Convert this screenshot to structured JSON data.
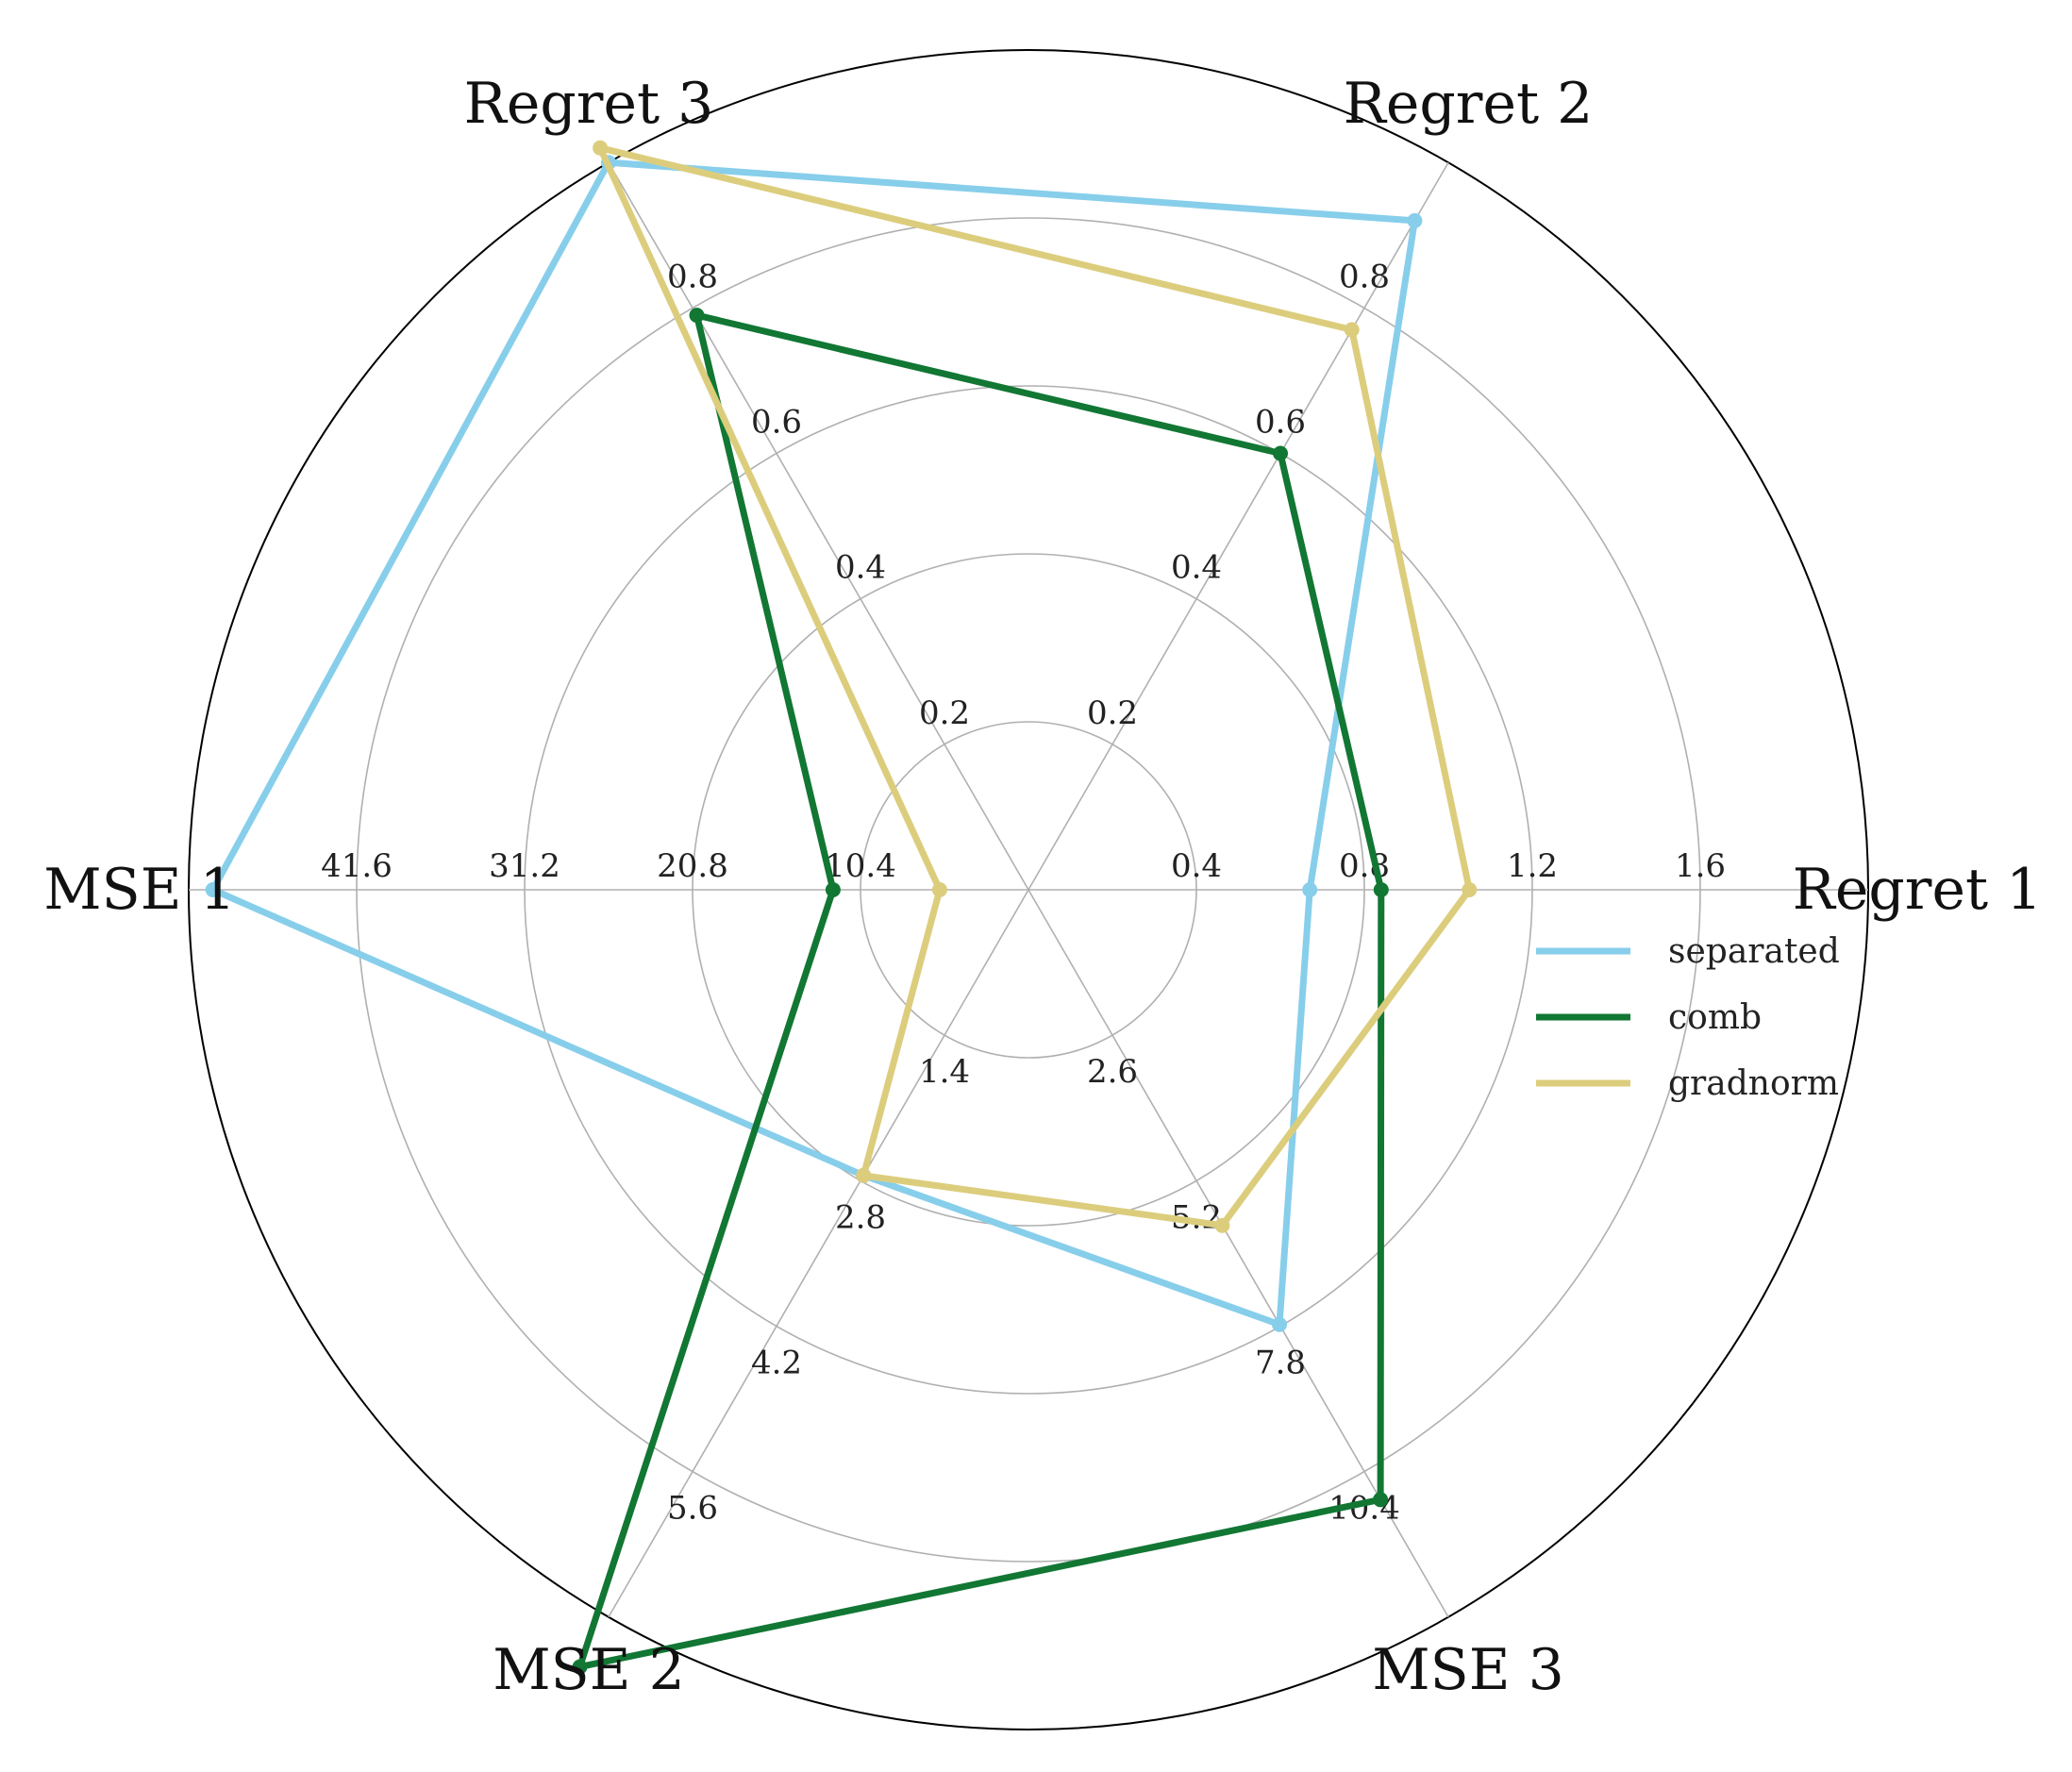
{
  "chart_data": {
    "type": "radar",
    "axes": [
      {
        "name": "Regret 1",
        "ticks": [
          {
            "value": 0.4,
            "label": "0.4"
          },
          {
            "value": 0.8,
            "label": "0.8"
          },
          {
            "value": 1.2,
            "label": "1.2"
          },
          {
            "value": 1.6,
            "label": "1.6"
          }
        ]
      },
      {
        "name": "Regret 2",
        "ticks": [
          {
            "value": 0.2,
            "label": "0.2"
          },
          {
            "value": 0.4,
            "label": "0.4"
          },
          {
            "value": 0.6,
            "label": "0.6"
          },
          {
            "value": 0.8,
            "label": "0.8"
          }
        ]
      },
      {
        "name": "Regret 3",
        "ticks": [
          {
            "value": 0.2,
            "label": "0.2"
          },
          {
            "value": 0.4,
            "label": "0.4"
          },
          {
            "value": 0.6,
            "label": "0.6"
          },
          {
            "value": 0.8,
            "label": "0.8"
          }
        ]
      },
      {
        "name": "MSE 1",
        "ticks": [
          {
            "value": 10.4,
            "label": "10.4"
          },
          {
            "value": 20.8,
            "label": "20.8"
          },
          {
            "value": 31.2,
            "label": "31.2"
          },
          {
            "value": 41.6,
            "label": "41.6"
          }
        ]
      },
      {
        "name": "MSE 2",
        "ticks": [
          {
            "value": 1.4,
            "label": "1.4"
          },
          {
            "value": 2.8,
            "label": "2.8"
          },
          {
            "value": 4.2,
            "label": "4.2"
          },
          {
            "value": 5.6,
            "label": "5.6"
          }
        ]
      },
      {
        "name": "MSE 3",
        "ticks": [
          {
            "value": 2.6,
            "label": "2.6"
          },
          {
            "value": 5.2,
            "label": "5.2"
          },
          {
            "value": 7.8,
            "label": "7.8"
          },
          {
            "value": 10.4,
            "label": "10.4"
          }
        ]
      }
    ],
    "series": [
      {
        "name": "separated",
        "color": "#87ceeb",
        "values": [
          0.67,
          0.92,
          1.0,
          50.5,
          2.75,
          7.77
        ]
      },
      {
        "name": "comb",
        "color": "#117733",
        "values": [
          0.84,
          0.6,
          0.79,
          12.1,
          7.48,
          10.9
        ]
      },
      {
        "name": "gradnorm",
        "color": "#dccd7d",
        "values": [
          1.05,
          0.77,
          1.02,
          5.5,
          2.75,
          6.0
        ]
      }
    ],
    "legend_position": "right",
    "grid": true
  }
}
